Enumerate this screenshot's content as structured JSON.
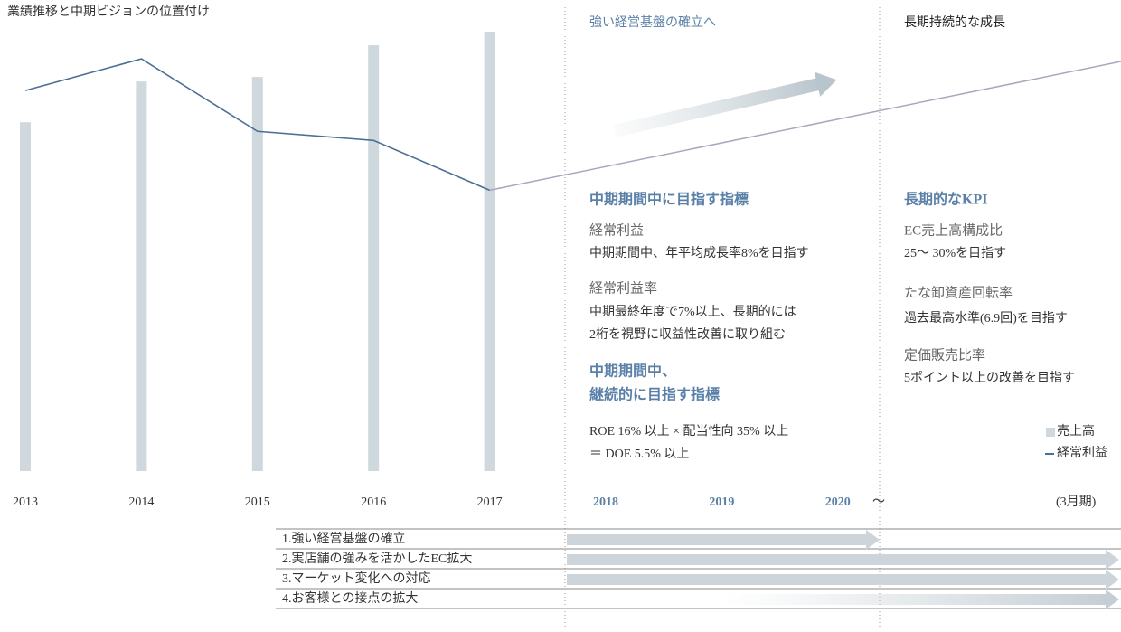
{
  "chart_data": {
    "type": "bar",
    "title": "業績推移と中期ビジョンの位置付け",
    "categories": [
      "2013",
      "2014",
      "2015",
      "2016",
      "2017",
      "2018",
      "2019",
      "2020"
    ],
    "series": [
      {
        "name": "売上高",
        "type": "bar",
        "color": "#cfd8dd",
        "values": [
          77,
          86,
          87,
          94,
          97,
          null,
          null,
          null
        ]
      },
      {
        "name": "経常利益",
        "type": "line",
        "color": "#4a6f95",
        "values": [
          84,
          91,
          75,
          73,
          62,
          null,
          null,
          null
        ]
      }
    ],
    "ylim": [
      0,
      100
    ],
    "tilde": "〜",
    "period_note": "(3月期)"
  },
  "mid_term": {
    "heading": "強い経営基盤の確立へ",
    "kpi_heading": "中期期間中に目指す指標",
    "kpis": [
      {
        "label": "経常利益",
        "text": [
          "中期期間中、年平均成長率8%を目指す"
        ]
      },
      {
        "label": "経常利益率",
        "text": [
          "中期最終年度で7%以上、長期的には",
          "2桁を視野に収益性改善に取り組む"
        ]
      }
    ],
    "continuous_heading": [
      "中期期間中、",
      "継続的に目指す指標"
    ],
    "continuous_text": [
      "ROE 16% 以上 × 配当性向 35% 以上",
      "＝ DOE 5.5% 以上"
    ]
  },
  "long_term": {
    "heading": "長期持続的な成長",
    "kpi_heading": "長期的なKPI",
    "kpis": [
      {
        "label": "EC売上高構成比",
        "text": [
          "25〜 30%を目指す"
        ]
      },
      {
        "label": "たな卸資産回転率",
        "text": [
          "過去最高水準(6.9回)を目指す"
        ]
      },
      {
        "label": "定価販売比率",
        "text": [
          "5ポイント以上の改善を目指す"
        ]
      }
    ]
  },
  "strategies": [
    "1.強い経営基盤の確立",
    "2.実店舗の強みを活かしたEC拡大",
    "3.マーケット変化への対応",
    "4.お客様との接点の拡大"
  ]
}
